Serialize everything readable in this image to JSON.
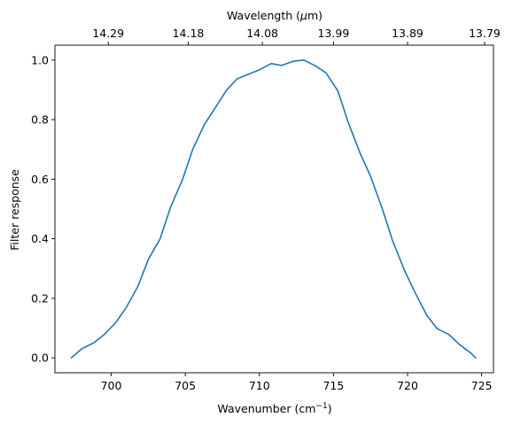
{
  "chart_data": {
    "type": "line",
    "ylabel": "Filter response",
    "xlabel_main": "Wavenumber (cm",
    "xlabel_sup": "−1",
    "xlabel_end": ")",
    "top_xlabel_main": "Wavelength (",
    "top_xlabel_mu": "μ",
    "top_xlabel_end": "m)",
    "xlim": [
      696.2,
      725.8
    ],
    "ylim": [
      -0.05,
      1.05
    ],
    "xticks": [
      700,
      705,
      710,
      715,
      720,
      725
    ],
    "xtick_labels": [
      "700",
      "705",
      "710",
      "715",
      "720",
      "725"
    ],
    "yticks": [
      0.0,
      0.2,
      0.4,
      0.6,
      0.8,
      1.0
    ],
    "ytick_labels": [
      "0.0",
      "0.2",
      "0.4",
      "0.6",
      "0.8",
      "1.0"
    ],
    "top_ticks": [
      {
        "label": "14.29",
        "at": 699.8
      },
      {
        "label": "14.18",
        "at": 705.2
      },
      {
        "label": "14.08",
        "at": 710.2
      },
      {
        "label": "13.99",
        "at": 715.0
      },
      {
        "label": "13.89",
        "at": 720.0
      },
      {
        "label": "13.79",
        "at": 725.2
      }
    ],
    "grid": false,
    "series": [
      {
        "color": "#1f77b4",
        "x": [
          697.3,
          698.0,
          698.8,
          699.5,
          700.3,
          701.0,
          701.8,
          702.5,
          703.3,
          704.0,
          704.8,
          705.5,
          706.3,
          707.0,
          707.8,
          708.5,
          709.3,
          710.0,
          710.8,
          711.5,
          712.3,
          713.0,
          713.8,
          714.5,
          715.3,
          716.0,
          716.8,
          717.5,
          718.3,
          719.0,
          719.8,
          720.5,
          721.3,
          722.0,
          722.8,
          723.5,
          724.3,
          724.6
        ],
        "y": [
          0.0,
          0.03,
          0.05,
          0.077,
          0.118,
          0.168,
          0.24,
          0.33,
          0.4,
          0.505,
          0.597,
          0.7,
          0.785,
          0.838,
          0.9,
          0.937,
          0.953,
          0.967,
          0.988,
          0.982,
          0.996,
          1.0,
          0.98,
          0.957,
          0.896,
          0.79,
          0.687,
          0.61,
          0.5,
          0.392,
          0.293,
          0.22,
          0.143,
          0.098,
          0.078,
          0.045,
          0.015,
          0.0
        ]
      }
    ]
  }
}
